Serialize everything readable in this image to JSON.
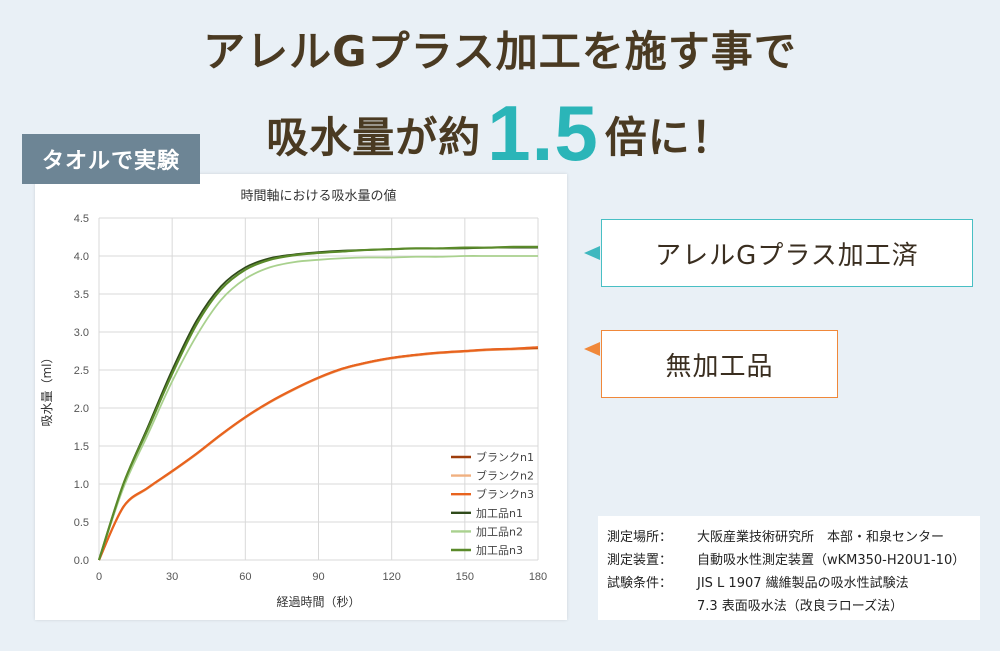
{
  "headline": {
    "line1": "アレルGプラス加工を施す事で",
    "line2_before": "吸水量が約",
    "line2_big": "1.5",
    "line2_after": "倍に！"
  },
  "tag": "タオルで実験",
  "callouts": {
    "processed": "アレルGプラス加工済",
    "unprocessed": "無加工品"
  },
  "colors": {
    "accent_teal": "#2bb5b8",
    "accent_orange": "#f0883a",
    "tag_bg": "#6d8595"
  },
  "info": {
    "place_label": "測定場所：",
    "place_value": "大阪産業技術研究所　本部・和泉センター",
    "device_label": "測定装置：",
    "device_value": "自動吸水性測定装置（wKM350-H20U1-10）",
    "cond_label": "試験条件：",
    "cond_value1": "JIS L 1907 繊維製品の吸水性試験法",
    "cond_value2": "7.3 表面吸水法（改良ラローズ法）"
  },
  "chart_data": {
    "type": "line",
    "title": "時間軸における吸水量の値",
    "xlabel": "経過時間（秒）",
    "ylabel": "吸水量（ml）",
    "xlim": [
      0,
      180
    ],
    "ylim": [
      0,
      4.5
    ],
    "xticks": [
      "0",
      "30",
      "60",
      "90",
      "120",
      "150",
      "180"
    ],
    "yticks": [
      "0.0",
      "0.5",
      "1.0",
      "1.5",
      "2.0",
      "2.5",
      "3.0",
      "3.5",
      "4.0",
      "4.5"
    ],
    "grid": true,
    "legend": "bottom-right",
    "x": [
      0,
      10,
      20,
      30,
      40,
      50,
      60,
      70,
      80,
      90,
      100,
      110,
      120,
      130,
      140,
      150,
      160,
      170,
      180
    ],
    "series": [
      {
        "name": "ブランクn1",
        "color": "#9e3d0b",
        "values": [
          0,
          0.7,
          0.95,
          1.17,
          1.4,
          1.65,
          1.88,
          2.08,
          2.25,
          2.4,
          2.52,
          2.6,
          2.66,
          2.7,
          2.73,
          2.75,
          2.77,
          2.78,
          2.79
        ]
      },
      {
        "name": "ブランクn2",
        "color": "#f0b080",
        "values": [
          0,
          0.69,
          0.94,
          1.16,
          1.39,
          1.64,
          1.87,
          2.07,
          2.24,
          2.39,
          2.51,
          2.59,
          2.65,
          2.69,
          2.72,
          2.74,
          2.76,
          2.77,
          2.78
        ]
      },
      {
        "name": "ブランクn3",
        "color": "#e8631e",
        "values": [
          0,
          0.7,
          0.95,
          1.17,
          1.4,
          1.65,
          1.88,
          2.08,
          2.25,
          2.4,
          2.52,
          2.6,
          2.66,
          2.7,
          2.73,
          2.75,
          2.77,
          2.78,
          2.8
        ]
      },
      {
        "name": "加工品n1",
        "color": "#2f4a1a",
        "values": [
          0,
          1.0,
          1.75,
          2.5,
          3.15,
          3.6,
          3.85,
          3.97,
          4.02,
          4.05,
          4.07,
          4.08,
          4.09,
          4.1,
          4.1,
          4.1,
          4.11,
          4.11,
          4.11
        ]
      },
      {
        "name": "加工品n2",
        "color": "#a9d18e",
        "values": [
          0,
          0.95,
          1.65,
          2.35,
          2.95,
          3.42,
          3.7,
          3.85,
          3.92,
          3.95,
          3.97,
          3.98,
          3.98,
          3.99,
          3.99,
          4.0,
          4.0,
          4.0,
          4.0
        ]
      },
      {
        "name": "加工品n3",
        "color": "#5a8a2a",
        "values": [
          0,
          1.0,
          1.72,
          2.45,
          3.1,
          3.56,
          3.82,
          3.95,
          4.01,
          4.04,
          4.06,
          4.08,
          4.09,
          4.1,
          4.1,
          4.11,
          4.11,
          4.12,
          4.12
        ]
      }
    ]
  }
}
